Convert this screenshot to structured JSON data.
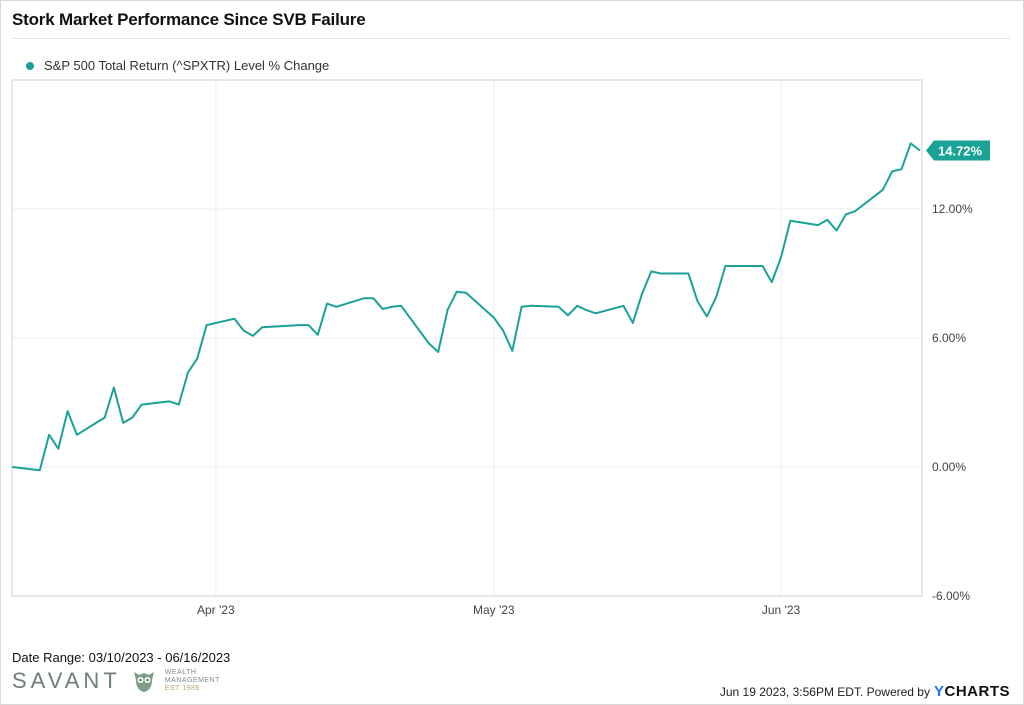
{
  "chart_data": {
    "type": "line",
    "title": "Stork Market Performance Since SVB Failure",
    "series": [
      {
        "name": "S&P 500 Total Return (^SPXTR) Level % Change",
        "color": "#1aa296",
        "x": [
          "2023-03-10",
          "2023-03-13",
          "2023-03-14",
          "2023-03-15",
          "2023-03-16",
          "2023-03-17",
          "2023-03-20",
          "2023-03-21",
          "2023-03-22",
          "2023-03-23",
          "2023-03-24",
          "2023-03-27",
          "2023-03-28",
          "2023-03-29",
          "2023-03-30",
          "2023-03-31",
          "2023-04-03",
          "2023-04-04",
          "2023-04-05",
          "2023-04-06",
          "2023-04-10",
          "2023-04-11",
          "2023-04-12",
          "2023-04-13",
          "2023-04-14",
          "2023-04-17",
          "2023-04-18",
          "2023-04-19",
          "2023-04-20",
          "2023-04-21",
          "2023-04-24",
          "2023-04-25",
          "2023-04-26",
          "2023-04-27",
          "2023-04-28",
          "2023-05-01",
          "2023-05-02",
          "2023-05-03",
          "2023-05-04",
          "2023-05-05",
          "2023-05-08",
          "2023-05-09",
          "2023-05-10",
          "2023-05-11",
          "2023-05-12",
          "2023-05-15",
          "2023-05-16",
          "2023-05-17",
          "2023-05-18",
          "2023-05-19",
          "2023-05-22",
          "2023-05-23",
          "2023-05-24",
          "2023-05-25",
          "2023-05-26",
          "2023-05-30",
          "2023-05-31",
          "2023-06-01",
          "2023-06-02",
          "2023-06-05",
          "2023-06-06",
          "2023-06-07",
          "2023-06-08",
          "2023-06-09",
          "2023-06-12",
          "2023-06-13",
          "2023-06-14",
          "2023-06-15",
          "2023-06-16"
        ],
        "y": [
          0.0,
          -0.15,
          1.5,
          0.85,
          2.6,
          1.5,
          2.3,
          3.7,
          2.05,
          2.3,
          2.9,
          3.05,
          2.9,
          4.4,
          5.05,
          6.6,
          6.9,
          6.35,
          6.1,
          6.5,
          6.6,
          6.6,
          6.15,
          7.6,
          7.45,
          7.85,
          7.85,
          7.35,
          7.45,
          7.5,
          5.75,
          5.35,
          7.3,
          8.15,
          8.1,
          6.95,
          6.35,
          5.4,
          7.45,
          7.5,
          7.45,
          7.05,
          7.5,
          7.3,
          7.15,
          7.5,
          6.7,
          8.05,
          9.1,
          9.0,
          9.0,
          7.7,
          7.0,
          7.9,
          9.35,
          9.35,
          8.6,
          9.75,
          11.45,
          11.25,
          11.5,
          11.0,
          11.75,
          11.9,
          12.9,
          13.75,
          13.85,
          15.05,
          14.72
        ]
      }
    ],
    "xticks": [
      {
        "date": "2023-04-01",
        "label": "Apr '23"
      },
      {
        "date": "2023-05-01",
        "label": "May '23"
      },
      {
        "date": "2023-06-01",
        "label": "Jun '23"
      }
    ],
    "yticks": [
      {
        "value": -6,
        "label": "-6.00%"
      },
      {
        "value": 0,
        "label": "0.00%"
      },
      {
        "value": 6,
        "label": "6.00%"
      },
      {
        "value": 12,
        "label": "12.00%"
      }
    ],
    "ylim": [
      -6,
      18
    ],
    "xlim": [
      "2023-03-10",
      "2023-06-16"
    ],
    "end_label": "14.72%",
    "grid": true,
    "legend_position": "top-left",
    "y_axis_position": "right"
  },
  "footer": {
    "date_range": "Date Range: 03/10/2023 - 06/16/2023",
    "timestamp": "Jun 19 2023, 3:56PM EDT. Powered by",
    "brand_y": "Y",
    "brand_rest": "CHARTS"
  },
  "logo": {
    "wordmark": "SAVANT",
    "line1": "WEALTH",
    "line2": "MANAGEMENT",
    "line3": "EST 1986"
  }
}
